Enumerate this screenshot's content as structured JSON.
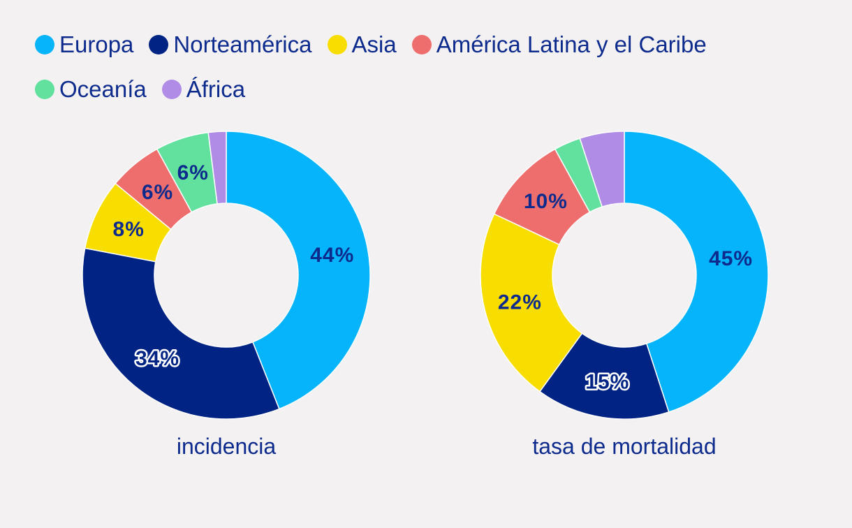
{
  "legend": [
    {
      "label": "Europa",
      "color": "#05b4fa"
    },
    {
      "label": "Norteamérica",
      "color": "#012484"
    },
    {
      "label": "Asia",
      "color": "#f8dd00"
    },
    {
      "label": "América Latina y el Caribe",
      "color": "#ee6e6e"
    },
    {
      "label": "Oceanía",
      "color": "#62e09e"
    },
    {
      "label": "África",
      "color": "#b08ce6"
    }
  ],
  "chart_data": [
    {
      "type": "pie",
      "title": "incidencia",
      "categories": [
        "Europa",
        "Norteamérica",
        "Asia",
        "América Latina y el Caribe",
        "Oceanía",
        "África"
      ],
      "values": [
        44,
        34,
        8,
        6,
        6,
        2
      ],
      "labels": [
        "44%",
        "34%",
        "8%",
        "6%",
        "6%",
        ""
      ]
    },
    {
      "type": "pie",
      "title": "tasa de mortalidad",
      "categories": [
        "Europa",
        "Norteamérica",
        "Asia",
        "América Latina y el Caribe",
        "Oceanía",
        "África"
      ],
      "values": [
        45,
        15,
        22,
        10,
        3,
        5
      ],
      "labels": [
        "45%",
        "15%",
        "22%",
        "10%",
        "",
        ""
      ]
    }
  ]
}
